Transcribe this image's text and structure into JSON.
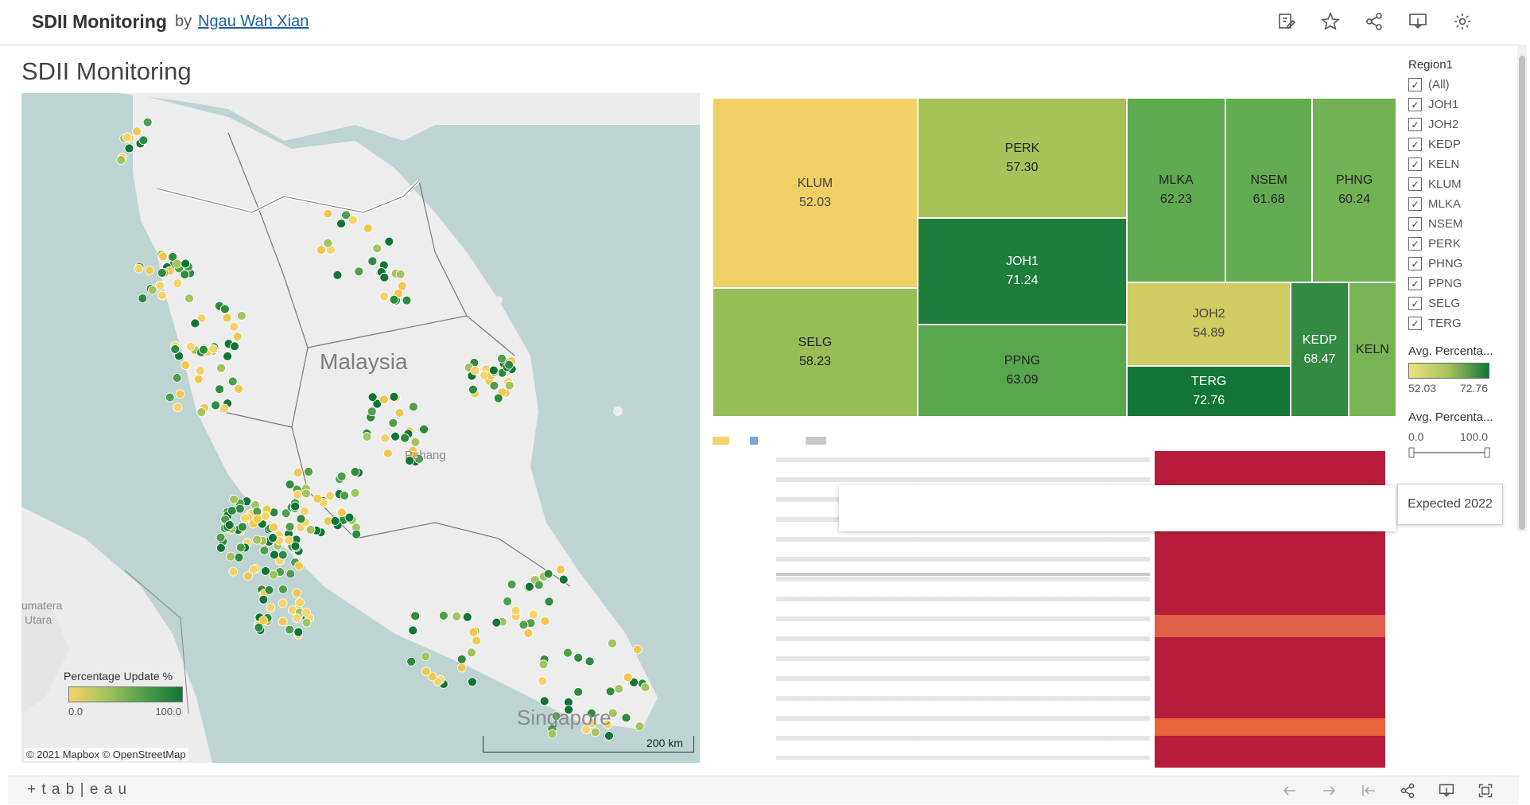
{
  "header": {
    "title": "SDII Monitoring",
    "by": "by",
    "author": "Ngau Wah Xian"
  },
  "toolbar_icons": [
    "edit-icon",
    "star-icon",
    "share-icon",
    "download-icon",
    "settings-icon"
  ],
  "dashboard": {
    "title": "SDII Monitoring"
  },
  "map": {
    "country_label": "Malaysia",
    "state_label": "Pahang",
    "sumatra_label_1": "umatera",
    "sumatra_label_2": "Utara",
    "city_label": "Singapore",
    "legend_title": "Percentage Update %",
    "legend_min": "0.0",
    "legend_max": "100.0",
    "attribution": "© 2021 Mapbox  © OpenStreetMap",
    "scale_label": "200 km",
    "colors": {
      "low": "#f5d36a",
      "mid": "#a3c35e",
      "high": "#127535",
      "water": "#bdd4d3",
      "land": "#efefef"
    }
  },
  "treemap": {
    "tiles": [
      {
        "name": "KLUM",
        "value": "52.03",
        "color": "#f0cf66"
      },
      {
        "name": "PERK",
        "value": "57.30",
        "color": "#a8c25a"
      },
      {
        "name": "MLKA",
        "value": "62.23",
        "color": "#5faa50"
      },
      {
        "name": "NSEM",
        "value": "61.68",
        "color": "#62ab51"
      },
      {
        "name": "PHNG",
        "value": "60.24",
        "color": "#72b154"
      },
      {
        "name": "JOH1",
        "value": "71.24",
        "color": "#1f7d3c"
      },
      {
        "name": "SELG",
        "value": "58.23",
        "color": "#98bd57"
      },
      {
        "name": "PPNG",
        "value": "63.09",
        "color": "#58a64e"
      },
      {
        "name": "JOH2",
        "value": "54.89",
        "color": "#cfcc62"
      },
      {
        "name": "KEDP",
        "value": "68.47",
        "color": "#338a42"
      },
      {
        "name": "KELN",
        "value": "",
        "color": "#7ab355"
      },
      {
        "name": "TERG",
        "value": "72.76",
        "color": "#137535"
      }
    ]
  },
  "filter_panel": {
    "region_title": "Region1",
    "regions": [
      "(All)",
      "JOH1",
      "JOH2",
      "KEDP",
      "KELN",
      "KLUM",
      "MLKA",
      "NSEM",
      "PERK",
      "PHNG",
      "PPNG",
      "SELG",
      "TERG"
    ],
    "avg_title_1": "Avg. Percenta...",
    "avg_min": "52.03",
    "avg_max": "72.76",
    "avg_title_2": "Avg. Percenta...",
    "slider_min": "0.0",
    "slider_max": "100.0"
  },
  "tooltip": {
    "text": "Expected 2022"
  },
  "footer": {
    "brand": "+ t a b | e a u",
    "icons": [
      "undo-icon",
      "redo-icon",
      "revert-icon",
      "share-icon",
      "download-icon",
      "fullscreen-icon"
    ]
  }
}
